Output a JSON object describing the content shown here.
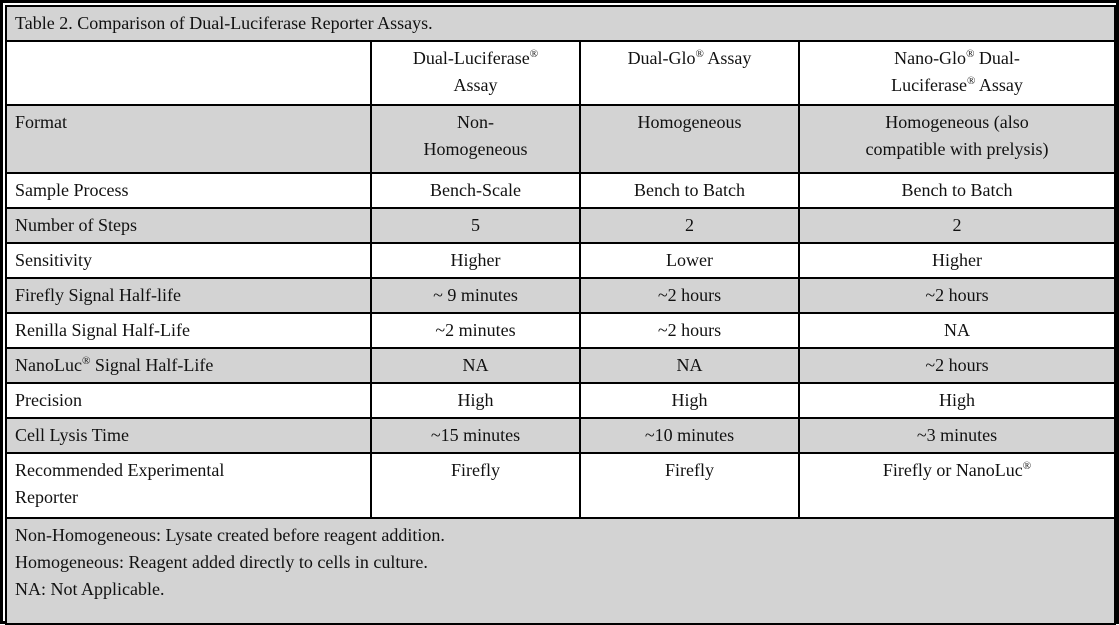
{
  "colors": {
    "row_shade": "#d3d3d3",
    "border": "#000000",
    "text": "#111111"
  },
  "table": {
    "title": "Table 2. Comparison of Dual-Luciferase Reporter Assays.",
    "columns": [
      "",
      "Dual-Luciferase®\nAssay",
      "Dual-Glo® Assay",
      "Nano-Glo® Dual-\nLuciferase® Assay"
    ],
    "rows": [
      {
        "label": "Format",
        "values": [
          "Non-\nHomogeneous",
          "Homogeneous",
          "Homogeneous (also\ncompatible with prelysis)"
        ]
      },
      {
        "label": "Sample Process",
        "values": [
          "Bench-Scale",
          "Bench to Batch",
          "Bench to Batch"
        ]
      },
      {
        "label": "Number of Steps",
        "values": [
          "5",
          "2",
          "2"
        ]
      },
      {
        "label": "Sensitivity",
        "values": [
          "Higher",
          "Lower",
          "Higher"
        ]
      },
      {
        "label": "Firefly Signal Half-life",
        "values": [
          "~ 9 minutes",
          "~2 hours",
          "~2 hours"
        ]
      },
      {
        "label": "Renilla Signal Half-Life",
        "values": [
          "~2 minutes",
          "~2 hours",
          "NA"
        ]
      },
      {
        "label": "NanoLuc® Signal Half-Life",
        "values": [
          "NA",
          "NA",
          "~2 hours"
        ]
      },
      {
        "label": "Precision",
        "values": [
          "High",
          "High",
          "High"
        ]
      },
      {
        "label": "Cell Lysis Time",
        "values": [
          "~15 minutes",
          "~10 minutes",
          "~3 minutes"
        ]
      },
      {
        "label": "Recommended Experimental\nReporter",
        "values": [
          "Firefly",
          "Firefly",
          "Firefly or NanoLuc®"
        ]
      }
    ],
    "footnotes": [
      "Non-Homogeneous: Lysate created before reagent addition.",
      "Homogeneous: Reagent added directly to cells in culture.",
      "NA: Not Applicable."
    ]
  }
}
